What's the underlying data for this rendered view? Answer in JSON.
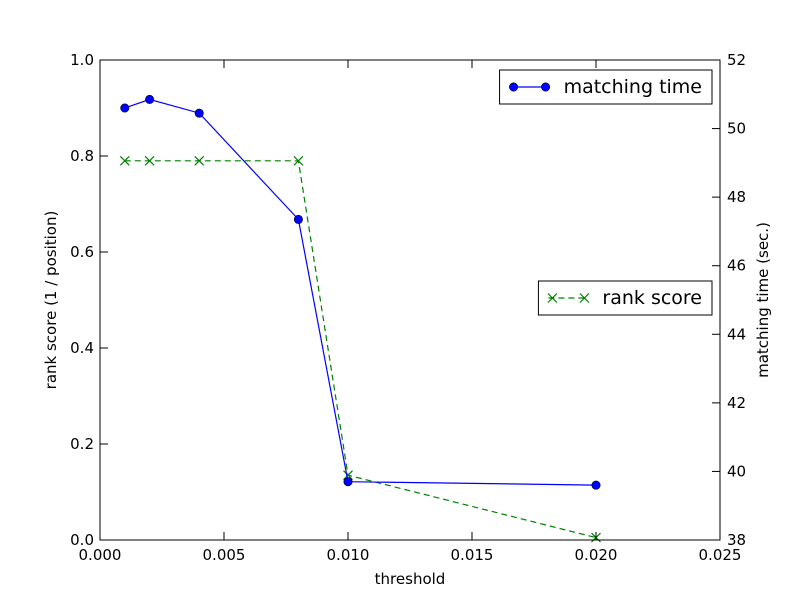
{
  "chart_data": {
    "type": "line",
    "xlabel": "threshold",
    "ylabel_left": "rank score (1 / position)",
    "ylabel_right": "matching time (sec.)",
    "xlim": [
      0.0,
      0.025
    ],
    "ylim_left": [
      0.0,
      1.0
    ],
    "ylim_right": [
      38,
      52
    ],
    "x_ticks": [
      "0.000",
      "0.005",
      "0.010",
      "0.015",
      "0.020",
      "0.025"
    ],
    "y_left_ticks": [
      "0.0",
      "0.2",
      "0.4",
      "0.6",
      "0.8",
      "1.0"
    ],
    "y_right_ticks": [
      "38",
      "40",
      "42",
      "44",
      "46",
      "48",
      "50",
      "52"
    ],
    "grid": false,
    "series": [
      {
        "name": "rank score",
        "axis": "left",
        "color": "#008000",
        "line_style": "dashed",
        "marker": "x",
        "legend_position": "center-right",
        "x": [
          0.001,
          0.002,
          0.004,
          0.008,
          0.01,
          0.02
        ],
        "y": [
          0.79,
          0.79,
          0.79,
          0.79,
          0.135,
          0.005
        ]
      },
      {
        "name": "matching time",
        "axis": "right",
        "color": "#0000ff",
        "line_style": "solid",
        "marker": "o",
        "legend_position": "top-right",
        "x": [
          0.001,
          0.002,
          0.004,
          0.008,
          0.01,
          0.02
        ],
        "y": [
          50.6,
          50.85,
          50.45,
          47.35,
          39.7,
          39.6
        ]
      }
    ]
  }
}
